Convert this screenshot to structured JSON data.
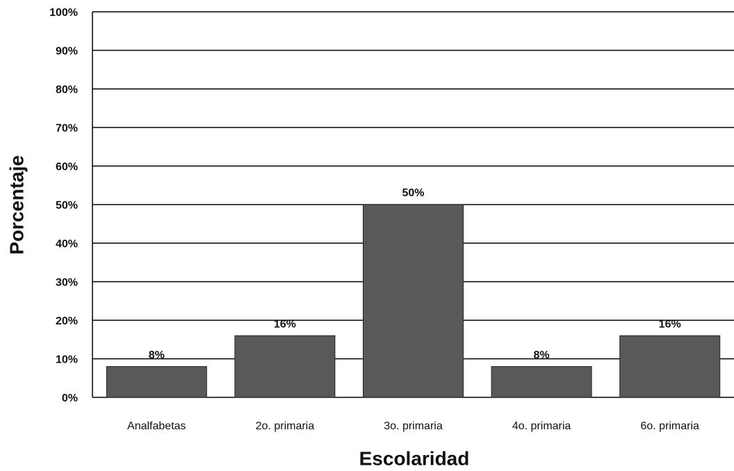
{
  "chart_data": {
    "type": "bar",
    "x_label": "Escolaridad",
    "y_label": "Porcentaje",
    "categories": [
      "Analfabetas",
      "2o. primaria",
      "3o. primaria",
      "4o. primaria",
      "6o. primaria"
    ],
    "values": [
      8,
      16,
      50,
      8,
      16
    ],
    "value_labels": [
      "8%",
      "16%",
      "50%",
      "8%",
      "16%"
    ],
    "color": "#595959",
    "ylim": [
      0,
      100
    ],
    "yticks": [
      {
        "value": 0,
        "label": "0%"
      },
      {
        "value": 10,
        "label": "10%"
      },
      {
        "value": 20,
        "label": "20%"
      },
      {
        "value": 30,
        "label": "30%"
      },
      {
        "value": 40,
        "label": "40%"
      },
      {
        "value": 50,
        "label": "50%"
      },
      {
        "value": 60,
        "label": "60%"
      },
      {
        "value": 70,
        "label": "70%"
      },
      {
        "value": 80,
        "label": "80%"
      },
      {
        "value": 90,
        "label": "90%"
      },
      {
        "value": 100,
        "label": "100%"
      }
    ],
    "grid": true
  }
}
